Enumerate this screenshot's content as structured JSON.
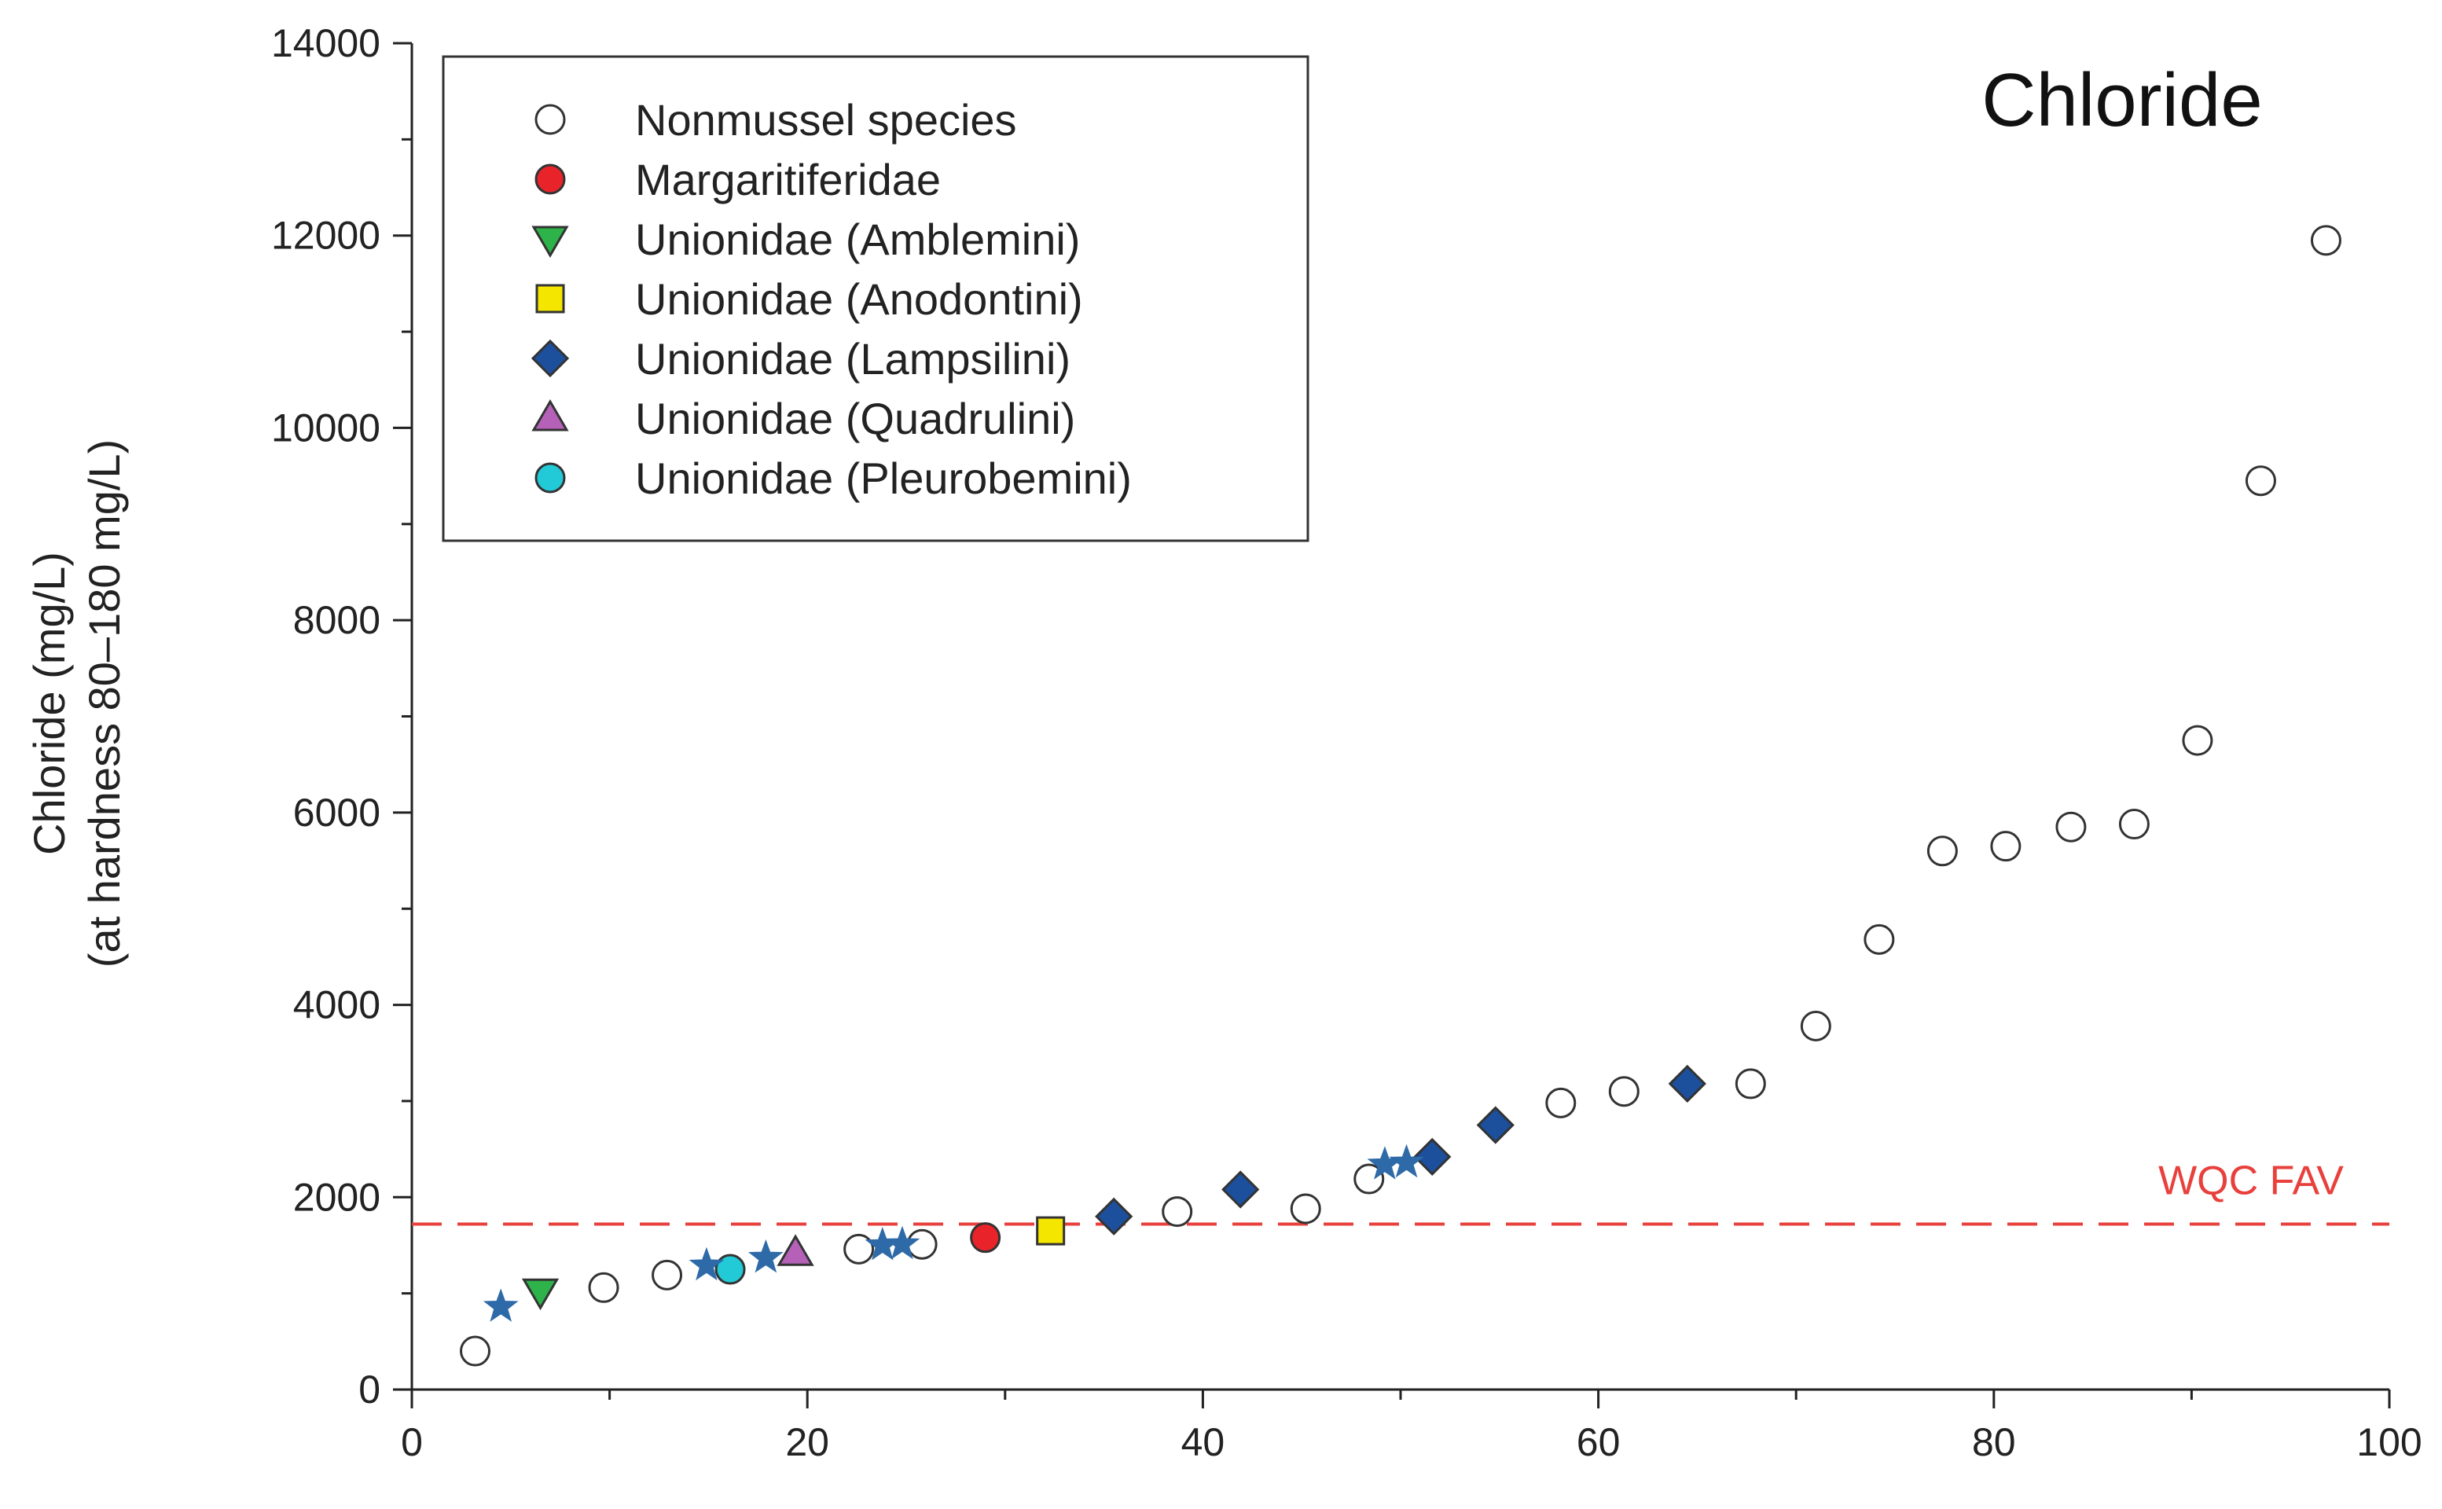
{
  "chart_data": {
    "type": "scatter",
    "title": "Chloride",
    "ylabel": "Chloride (mg/L)",
    "ylabel2": "(at hardness 80–180 mg/L)",
    "xlabel": "",
    "xlim": [
      0,
      100
    ],
    "ylim": [
      0,
      14000
    ],
    "xticks": [
      0,
      20,
      40,
      60,
      80,
      100
    ],
    "xtick_labels": [
      "0",
      "20",
      "40",
      "60",
      "80",
      "100"
    ],
    "yticks": [
      0,
      2000,
      4000,
      6000,
      8000,
      10000,
      12000,
      14000
    ],
    "ytick_labels": [
      "0",
      "2000",
      "4000",
      "6000",
      "8000",
      "10000",
      "12000",
      "14000"
    ],
    "grid": false,
    "legend_position": "top-left",
    "reference_line": {
      "label": "WQC FAV",
      "value": 1720,
      "color": "#e8403c"
    },
    "star_color": "#2e6aa8",
    "series": [
      {
        "name": "Nonmussel species",
        "marker": "circle",
        "color": "#ffffff",
        "points": [
          [
            3.2,
            400
          ],
          [
            9.7,
            1060
          ],
          [
            12.9,
            1190
          ],
          [
            22.6,
            1460
          ],
          [
            25.8,
            1510
          ],
          [
            38.7,
            1850
          ],
          [
            45.2,
            1880
          ],
          [
            48.4,
            2190
          ],
          [
            58.1,
            2980
          ],
          [
            61.3,
            3100
          ],
          [
            67.7,
            3180
          ],
          [
            71.0,
            3780
          ],
          [
            74.2,
            4680
          ],
          [
            77.4,
            5600
          ],
          [
            80.6,
            5650
          ],
          [
            83.9,
            5850
          ],
          [
            87.1,
            5880
          ],
          [
            90.3,
            6750
          ],
          [
            93.5,
            9450
          ],
          [
            96.8,
            11950
          ]
        ]
      },
      {
        "name": "Margaritiferidae",
        "marker": "circle",
        "color": "#e8242a",
        "points": [
          [
            29.0,
            1580
          ]
        ]
      },
      {
        "name": "Unionidae (Amblemini)",
        "marker": "triangle-down",
        "color": "#2db34a",
        "points": [
          [
            6.5,
            1020
          ]
        ]
      },
      {
        "name": "Unionidae (Anodontini)",
        "marker": "square",
        "color": "#f5e600",
        "points": [
          [
            32.3,
            1650
          ]
        ]
      },
      {
        "name": "Unionidae (Lampsilini)",
        "marker": "diamond",
        "color": "#1c4f9c",
        "points": [
          [
            35.5,
            1800
          ],
          [
            41.9,
            2080
          ],
          [
            51.6,
            2420
          ],
          [
            54.8,
            2750
          ],
          [
            64.5,
            3180
          ]
        ]
      },
      {
        "name": "Unionidae (Quadrulini)",
        "marker": "triangle-up",
        "color": "#b561b8",
        "points": [
          [
            19.4,
            1420
          ]
        ]
      },
      {
        "name": "Unionidae (Pleurobemini)",
        "marker": "circle",
        "color": "#22c9d6",
        "points": [
          [
            16.1,
            1250
          ]
        ]
      },
      {
        "marker": "star",
        "color": "#2e6aa8",
        "points": [
          [
            4.5,
            860
          ],
          [
            14.9,
            1290
          ],
          [
            17.9,
            1370
          ],
          [
            23.8,
            1500
          ],
          [
            24.8,
            1510
          ],
          [
            49.2,
            2340
          ],
          [
            50.3,
            2360
          ]
        ]
      }
    ]
  }
}
